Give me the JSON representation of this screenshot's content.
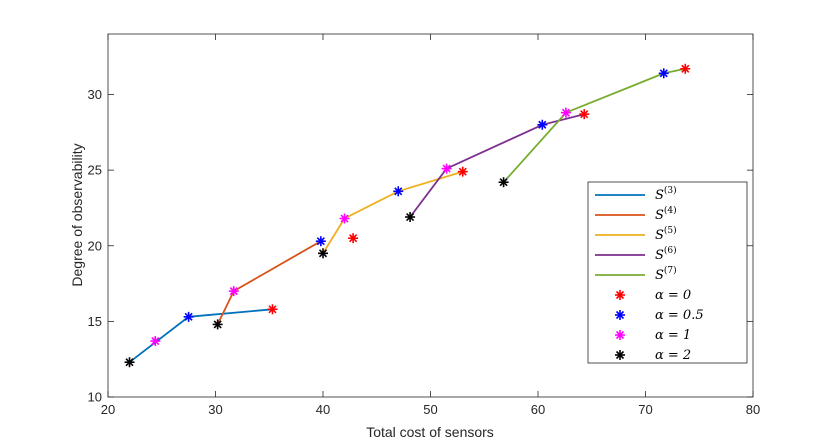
{
  "chart_data": {
    "type": "line",
    "xlabel": "Total cost of sensors",
    "ylabel": "Degree of observability",
    "xlim": [
      20,
      80
    ],
    "ylim": [
      10,
      34
    ],
    "xticks": [
      20,
      30,
      40,
      50,
      60,
      70,
      80
    ],
    "yticks": [
      10,
      15,
      20,
      25,
      30
    ],
    "legend_position": "right",
    "series": [
      {
        "name": "S",
        "sup": "(3)",
        "color": "#0072BD",
        "x": [
          22.0,
          27.5,
          35.3
        ],
        "y": [
          12.3,
          15.3,
          15.8
        ]
      },
      {
        "name": "S",
        "sup": "(4)",
        "color": "#D95319",
        "x": [
          30.2,
          31.7,
          39.8
        ],
        "y": [
          14.8,
          17.0,
          20.3
        ]
      },
      {
        "name": "S",
        "sup": "(5)",
        "color": "#EDB120",
        "x": [
          40.0,
          42.0,
          47.0,
          53.0
        ],
        "y": [
          19.5,
          21.8,
          23.6,
          24.9
        ]
      },
      {
        "name": "S",
        "sup": "(6)",
        "color": "#7E2F8E",
        "x": [
          48.1,
          51.5,
          60.4,
          64.3
        ],
        "y": [
          21.9,
          25.1,
          28.0,
          28.7
        ]
      },
      {
        "name": "S",
        "sup": "(7)",
        "color": "#77AC30",
        "x": [
          56.8,
          62.6,
          71.7,
          73.7
        ],
        "y": [
          24.2,
          28.8,
          31.4,
          31.7
        ]
      }
    ],
    "marker_groups": [
      {
        "label": "α = 0",
        "color": "#FF0000",
        "x": [
          35.3,
          42.8,
          53.0,
          64.3,
          73.7
        ],
        "y": [
          15.8,
          20.5,
          24.9,
          28.7,
          31.7
        ]
      },
      {
        "label": "α = 0.5",
        "color": "#0000FF",
        "x": [
          27.5,
          39.8,
          47.0,
          60.4,
          71.7
        ],
        "y": [
          15.3,
          20.3,
          23.6,
          28.0,
          31.4
        ]
      },
      {
        "label": "α = 1",
        "color": "#FF00FF",
        "x": [
          24.4,
          31.7,
          42.0,
          51.5,
          62.6
        ],
        "y": [
          13.7,
          17.0,
          21.8,
          25.1,
          28.8
        ]
      },
      {
        "label": "α = 2",
        "color": "#000000",
        "x": [
          22.0,
          30.2,
          40.0,
          48.1,
          56.8
        ],
        "y": [
          12.3,
          14.8,
          19.5,
          21.9,
          24.2
        ]
      }
    ]
  }
}
